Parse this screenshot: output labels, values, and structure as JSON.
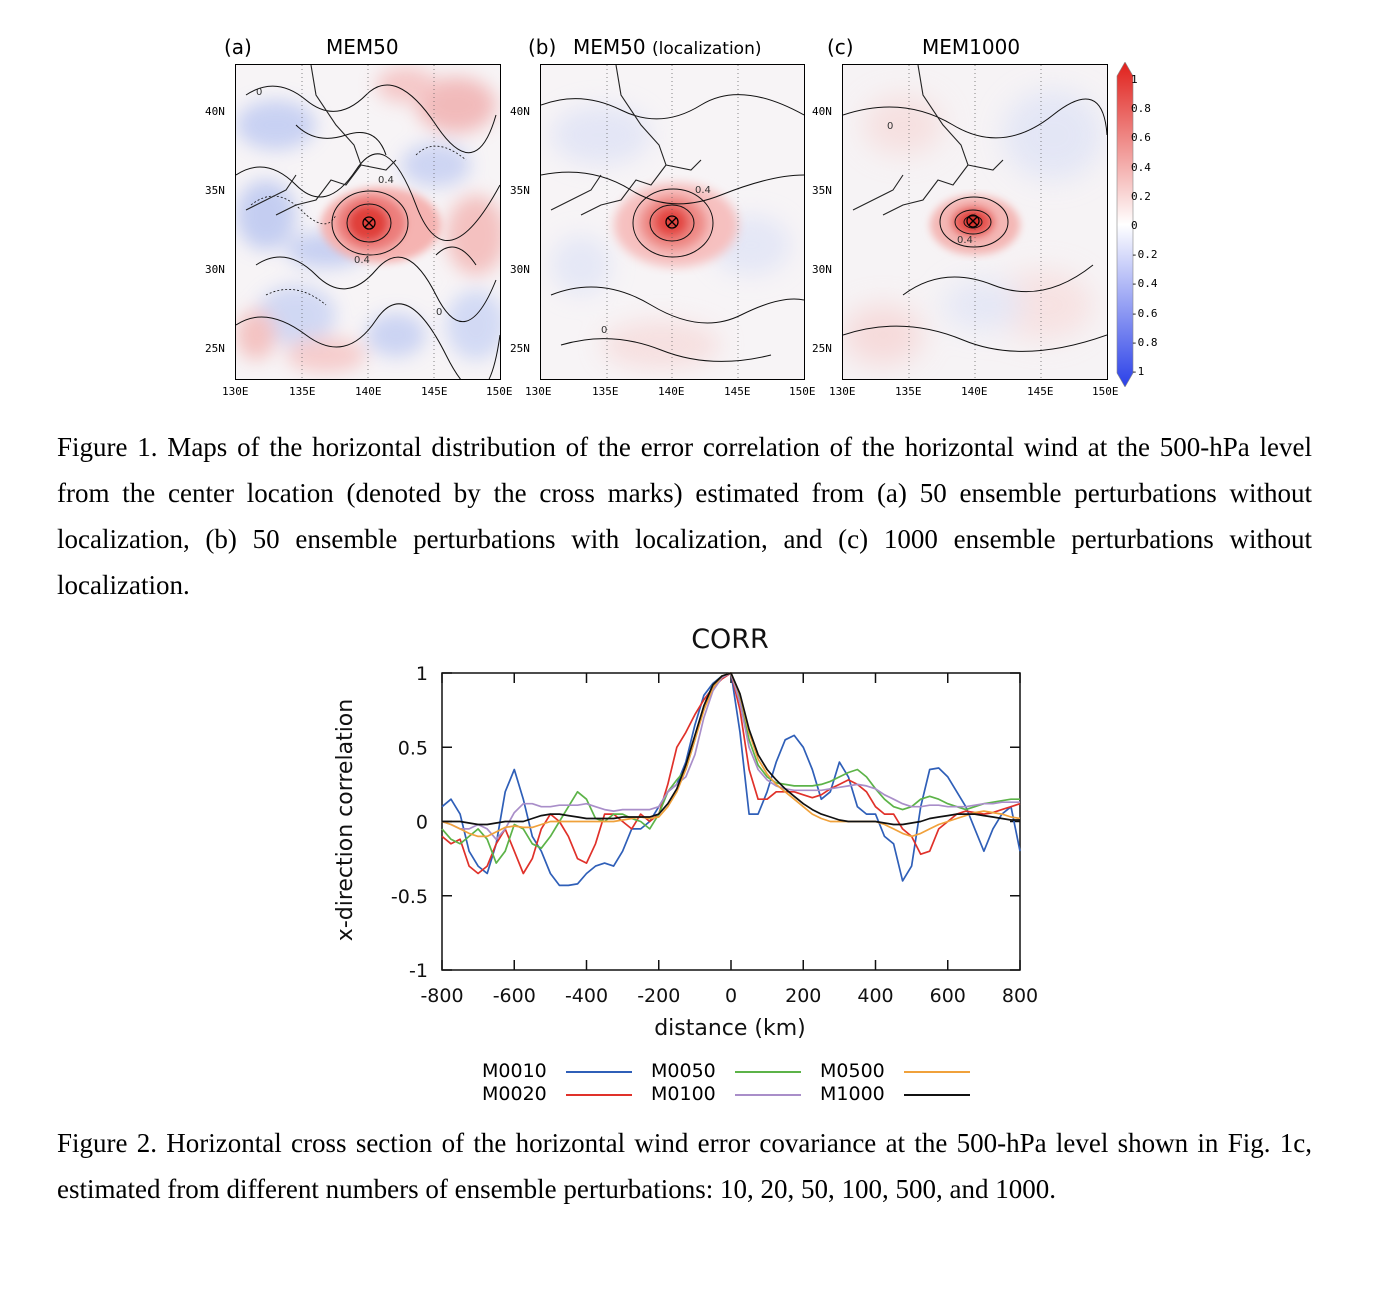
{
  "figure1": {
    "panels": [
      {
        "tag": "(a)",
        "title": "MEM50",
        "subtitle": ""
      },
      {
        "tag": "(b)",
        "title": "MEM50",
        "subtitle": "(localization)"
      },
      {
        "tag": "(c)",
        "title": "MEM1000",
        "subtitle": ""
      }
    ],
    "lat_labels": [
      "40N",
      "35N",
      "30N",
      "25N"
    ],
    "lon_labels": [
      "130E",
      "135E",
      "140E",
      "145E",
      "150E"
    ],
    "contour_label": "0.4",
    "zero_label": "0",
    "colorbar": {
      "ticks": [
        "1",
        "0.8",
        "0.6",
        "0.4",
        "0.2",
        "0",
        "-0.2",
        "-0.4",
        "-0.6",
        "-0.8",
        "-1"
      ],
      "colors": {
        "max": "#e0201b",
        "mid": "#ffffff",
        "min": "#2a40e8"
      }
    },
    "caption": "Figure 1. Maps of the horizontal distribution of the error correlation of the horizontal wind at the 500-hPa level from the center location (denoted by the cross marks) estimated from (a) 50 ensemble perturbations without localization, (b) 50 ensemble perturbations with localization, and (c) 1000 ensemble perturbations without localization."
  },
  "figure2": {
    "caption": "Figure 2. Horizontal cross section of the horizontal wind error covariance at the 500-hPa level shown in Fig. 1c, estimated from different numbers of ensemble perturbations: 10, 20, 50, 100, 500, and 1000."
  },
  "chart_data": {
    "type": "line",
    "title": "CORR",
    "xlabel": "distance (km)",
    "ylabel": "x-direction correlation",
    "xlim": [
      -800,
      800
    ],
    "ylim": [
      -1,
      1
    ],
    "xticks": [
      -800,
      -600,
      -400,
      -200,
      0,
      200,
      400,
      600,
      800
    ],
    "yticks": [
      1,
      0.5,
      0,
      -0.5,
      -1
    ],
    "xtick_labels": [
      "-800",
      "-600",
      "-400",
      "-200",
      "0",
      "200",
      "400",
      "600",
      "800"
    ],
    "ytick_labels": [
      "1",
      "0.5",
      "0",
      "-0.5",
      "-1"
    ],
    "legend_position": "bottom",
    "series": [
      {
        "name": "M0010",
        "color": "#2f5fb8",
        "x": [
          -800,
          -775,
          -750,
          -725,
          -700,
          -675,
          -650,
          -625,
          -600,
          -575,
          -550,
          -525,
          -500,
          -475,
          -450,
          -425,
          -400,
          -375,
          -350,
          -325,
          -300,
          -275,
          -250,
          -225,
          -200,
          -175,
          -150,
          -125,
          -100,
          -75,
          -50,
          -25,
          0,
          25,
          50,
          75,
          100,
          125,
          150,
          175,
          200,
          225,
          250,
          275,
          300,
          325,
          350,
          375,
          400,
          425,
          450,
          475,
          500,
          525,
          550,
          575,
          600,
          625,
          650,
          675,
          700,
          725,
          750,
          775,
          800
        ],
        "y": [
          0.1,
          0.15,
          0.05,
          -0.2,
          -0.3,
          -0.35,
          -0.15,
          0.2,
          0.35,
          0.15,
          -0.1,
          -0.2,
          -0.35,
          -0.43,
          -0.43,
          -0.42,
          -0.35,
          -0.3,
          -0.28,
          -0.3,
          -0.2,
          -0.05,
          -0.05,
          0.0,
          0.1,
          0.2,
          0.25,
          0.4,
          0.65,
          0.85,
          0.93,
          0.98,
          1.0,
          0.6,
          0.05,
          0.05,
          0.2,
          0.4,
          0.55,
          0.58,
          0.5,
          0.35,
          0.15,
          0.2,
          0.4,
          0.3,
          0.1,
          0.05,
          0.05,
          -0.1,
          -0.15,
          -0.4,
          -0.3,
          0.1,
          0.35,
          0.36,
          0.3,
          0.2,
          0.1,
          -0.05,
          -0.2,
          -0.05,
          0.05,
          0.1,
          -0.2
        ]
      },
      {
        "name": "M0020",
        "color": "#e0312a",
        "x": [
          -800,
          -775,
          -750,
          -725,
          -700,
          -675,
          -650,
          -625,
          -600,
          -575,
          -550,
          -525,
          -500,
          -475,
          -450,
          -425,
          -400,
          -375,
          -350,
          -325,
          -300,
          -275,
          -250,
          -225,
          -200,
          -175,
          -150,
          -125,
          -100,
          -75,
          -50,
          -25,
          0,
          25,
          50,
          75,
          100,
          125,
          150,
          175,
          200,
          225,
          250,
          275,
          300,
          325,
          350,
          375,
          400,
          425,
          450,
          475,
          500,
          525,
          550,
          575,
          600,
          625,
          650,
          675,
          700,
          725,
          750,
          775,
          800
        ],
        "y": [
          -0.1,
          -0.15,
          -0.12,
          -0.3,
          -0.35,
          -0.3,
          -0.15,
          -0.05,
          -0.2,
          -0.35,
          -0.25,
          -0.05,
          0.05,
          0.0,
          -0.1,
          -0.25,
          -0.28,
          -0.15,
          0.05,
          0.05,
          0.0,
          -0.05,
          0.05,
          0.0,
          0.05,
          0.25,
          0.5,
          0.6,
          0.72,
          0.82,
          0.9,
          0.96,
          1.0,
          0.75,
          0.35,
          0.15,
          0.15,
          0.2,
          0.2,
          0.2,
          0.18,
          0.16,
          0.18,
          0.22,
          0.25,
          0.28,
          0.25,
          0.2,
          0.1,
          0.05,
          0.05,
          -0.05,
          -0.1,
          -0.22,
          -0.2,
          -0.05,
          0.0,
          0.05,
          0.07,
          0.06,
          0.05,
          0.06,
          0.08,
          0.1,
          0.12
        ]
      },
      {
        "name": "M0050",
        "color": "#5cb348",
        "x": [
          -800,
          -775,
          -750,
          -725,
          -700,
          -675,
          -650,
          -625,
          -600,
          -575,
          -550,
          -525,
          -500,
          -475,
          -450,
          -425,
          -400,
          -375,
          -350,
          -325,
          -300,
          -275,
          -250,
          -225,
          -200,
          -175,
          -150,
          -125,
          -100,
          -75,
          -50,
          -25,
          0,
          25,
          50,
          75,
          100,
          125,
          150,
          175,
          200,
          225,
          250,
          275,
          300,
          325,
          350,
          375,
          400,
          425,
          450,
          475,
          500,
          525,
          550,
          575,
          600,
          625,
          650,
          675,
          700,
          725,
          750,
          775,
          800
        ],
        "y": [
          -0.05,
          -0.12,
          -0.15,
          -0.1,
          -0.05,
          -0.12,
          -0.28,
          -0.2,
          -0.02,
          -0.05,
          -0.15,
          -0.18,
          -0.1,
          0.0,
          0.1,
          0.2,
          0.15,
          0.02,
          0.0,
          0.05,
          0.05,
          0.02,
          0.0,
          -0.05,
          0.05,
          0.2,
          0.28,
          0.35,
          0.55,
          0.78,
          0.92,
          0.98,
          1.0,
          0.82,
          0.55,
          0.38,
          0.3,
          0.26,
          0.25,
          0.24,
          0.24,
          0.24,
          0.25,
          0.27,
          0.3,
          0.33,
          0.35,
          0.3,
          0.22,
          0.15,
          0.1,
          0.08,
          0.1,
          0.15,
          0.17,
          0.15,
          0.12,
          0.1,
          0.08,
          0.1,
          0.12,
          0.13,
          0.14,
          0.15,
          0.15
        ]
      },
      {
        "name": "M0100",
        "color": "#a98ec9",
        "x": [
          -800,
          -775,
          -750,
          -725,
          -700,
          -675,
          -650,
          -625,
          -600,
          -575,
          -550,
          -525,
          -500,
          -475,
          -450,
          -425,
          -400,
          -375,
          -350,
          -325,
          -300,
          -275,
          -250,
          -225,
          -200,
          -175,
          -150,
          -125,
          -100,
          -75,
          -50,
          -25,
          0,
          25,
          50,
          75,
          100,
          125,
          150,
          175,
          200,
          225,
          250,
          275,
          300,
          325,
          350,
          375,
          400,
          425,
          450,
          475,
          500,
          525,
          550,
          575,
          600,
          625,
          650,
          675,
          700,
          725,
          750,
          775,
          800
        ],
        "y": [
          0.0,
          -0.02,
          -0.05,
          -0.05,
          -0.02,
          -0.05,
          -0.12,
          -0.05,
          0.06,
          0.12,
          0.12,
          0.1,
          0.1,
          0.11,
          0.11,
          0.11,
          0.12,
          0.1,
          0.08,
          0.07,
          0.08,
          0.08,
          0.08,
          0.08,
          0.1,
          0.2,
          0.25,
          0.3,
          0.45,
          0.7,
          0.88,
          0.97,
          1.0,
          0.8,
          0.5,
          0.35,
          0.28,
          0.24,
          0.22,
          0.21,
          0.21,
          0.21,
          0.21,
          0.22,
          0.23,
          0.24,
          0.25,
          0.24,
          0.22,
          0.18,
          0.15,
          0.12,
          0.1,
          0.1,
          0.11,
          0.11,
          0.1,
          0.1,
          0.1,
          0.11,
          0.12,
          0.12,
          0.13,
          0.13,
          0.13
        ]
      },
      {
        "name": "M0500",
        "color": "#f0a13b",
        "x": [
          -800,
          -775,
          -750,
          -725,
          -700,
          -675,
          -650,
          -625,
          -600,
          -575,
          -550,
          -525,
          -500,
          -475,
          -450,
          -425,
          -400,
          -375,
          -350,
          -325,
          -300,
          -275,
          -250,
          -225,
          -200,
          -175,
          -150,
          -125,
          -100,
          -75,
          -50,
          -25,
          0,
          25,
          50,
          75,
          100,
          125,
          150,
          175,
          200,
          225,
          250,
          275,
          300,
          325,
          350,
          375,
          400,
          425,
          450,
          475,
          500,
          525,
          550,
          575,
          600,
          625,
          650,
          675,
          700,
          725,
          750,
          775,
          800
        ],
        "y": [
          0.0,
          -0.02,
          -0.05,
          -0.08,
          -0.1,
          -0.1,
          -0.07,
          -0.04,
          -0.03,
          -0.04,
          -0.04,
          -0.02,
          0.0,
          0.0,
          0.0,
          0.0,
          0.0,
          0.0,
          0.0,
          0.0,
          0.01,
          0.02,
          0.03,
          0.02,
          0.03,
          0.1,
          0.2,
          0.35,
          0.55,
          0.75,
          0.9,
          0.98,
          1.0,
          0.85,
          0.6,
          0.42,
          0.32,
          0.25,
          0.2,
          0.15,
          0.1,
          0.05,
          0.02,
          0.0,
          0.0,
          0.0,
          0.0,
          0.0,
          0.0,
          -0.02,
          -0.05,
          -0.08,
          -0.1,
          -0.08,
          -0.05,
          -0.02,
          0.0,
          0.02,
          0.04,
          0.06,
          0.07,
          0.06,
          0.05,
          0.03,
          0.02
        ]
      },
      {
        "name": "M1000",
        "color": "#111111",
        "x": [
          -800,
          -775,
          -750,
          -725,
          -700,
          -675,
          -650,
          -625,
          -600,
          -575,
          -550,
          -525,
          -500,
          -475,
          -450,
          -425,
          -400,
          -375,
          -350,
          -325,
          -300,
          -275,
          -250,
          -225,
          -200,
          -175,
          -150,
          -125,
          -100,
          -75,
          -50,
          -25,
          0,
          25,
          50,
          75,
          100,
          125,
          150,
          175,
          200,
          225,
          250,
          275,
          300,
          325,
          350,
          375,
          400,
          425,
          450,
          475,
          500,
          525,
          550,
          575,
          600,
          625,
          650,
          675,
          700,
          725,
          750,
          775,
          800
        ],
        "y": [
          0.0,
          0.0,
          0.0,
          -0.01,
          -0.02,
          -0.02,
          -0.01,
          0.0,
          0.0,
          0.0,
          0.02,
          0.04,
          0.05,
          0.05,
          0.04,
          0.03,
          0.02,
          0.02,
          0.02,
          0.02,
          0.03,
          0.03,
          0.03,
          0.03,
          0.05,
          0.12,
          0.22,
          0.38,
          0.58,
          0.78,
          0.92,
          0.98,
          1.0,
          0.86,
          0.62,
          0.45,
          0.35,
          0.28,
          0.22,
          0.17,
          0.12,
          0.08,
          0.05,
          0.03,
          0.01,
          0.0,
          0.0,
          0.0,
          0.0,
          -0.01,
          -0.02,
          -0.02,
          -0.01,
          0.0,
          0.02,
          0.03,
          0.04,
          0.05,
          0.05,
          0.05,
          0.04,
          0.03,
          0.02,
          0.01,
          0.01
        ]
      }
    ]
  }
}
